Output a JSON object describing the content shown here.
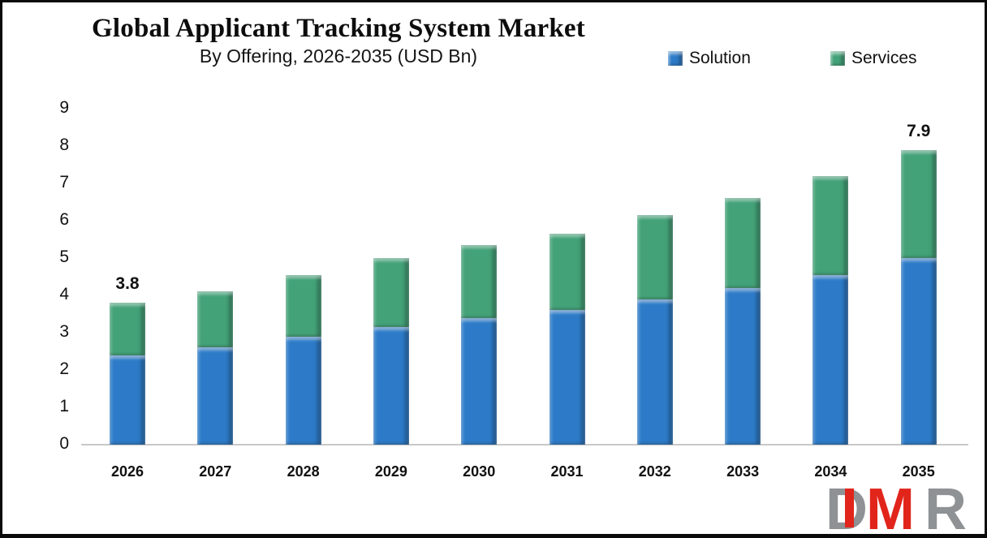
{
  "header": {
    "title": "Global Applicant Tracking System Market",
    "subtitle": "By Offering, 2026-2035 (USD Bn)"
  },
  "legend": {
    "items": [
      {
        "label": "Solution",
        "color": "#2d7bc8"
      },
      {
        "label": "Services",
        "color": "#43a278"
      }
    ]
  },
  "chart_data": {
    "type": "bar",
    "stacked": true,
    "title": "Global Applicant Tracking System Market",
    "subtitle": "By Offering, 2026-2035 (USD Bn)",
    "unit": "USD Bn",
    "categories": [
      "2026",
      "2027",
      "2028",
      "2029",
      "2030",
      "2031",
      "2032",
      "2033",
      "2034",
      "2035"
    ],
    "series": [
      {
        "name": "Solution",
        "color": "#2d7bc8",
        "values": [
          2.4,
          2.6,
          2.9,
          3.15,
          3.4,
          3.6,
          3.9,
          4.2,
          4.55,
          5.0
        ]
      },
      {
        "name": "Services",
        "color": "#43a278",
        "values": [
          1.4,
          1.5,
          1.65,
          1.85,
          1.95,
          2.05,
          2.25,
          2.4,
          2.65,
          2.9
        ]
      }
    ],
    "totals": [
      3.8,
      4.1,
      4.55,
      5.0,
      5.35,
      5.65,
      6.15,
      6.6,
      7.2,
      7.9
    ],
    "data_labels": [
      {
        "category": "2026",
        "text": "3.8"
      },
      {
        "category": "2035",
        "text": "7.9"
      }
    ],
    "y_axis": {
      "min": 0,
      "max": 9,
      "tick_step": 1,
      "ticks": [
        0,
        1,
        2,
        3,
        4,
        5,
        6,
        7,
        8,
        9
      ]
    },
    "gridlines": false,
    "legend_position": "top-right",
    "axis_line_color": "#c8c8c8"
  },
  "logo": {
    "letters": [
      {
        "char": "D",
        "color": "#8f9294"
      },
      {
        "char": "M",
        "color": "#e1251b"
      },
      {
        "char": "R",
        "color": "#8f9294"
      }
    ],
    "accent_color": "#e1251b"
  }
}
